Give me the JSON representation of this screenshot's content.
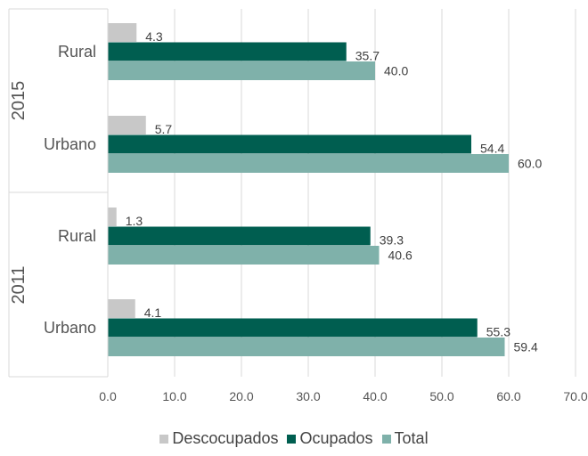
{
  "chart_data": {
    "type": "bar",
    "orientation": "horizontal",
    "groups": [
      {
        "label": "2015",
        "categories": [
          "Rural",
          "Urbano"
        ]
      },
      {
        "label": "2011",
        "categories": [
          "Rural",
          "Urbano"
        ]
      }
    ],
    "series": [
      {
        "name": "Descocupados",
        "color": "#c8c8c8",
        "values": [
          4.3,
          5.7,
          1.3,
          4.1
        ]
      },
      {
        "name": "Ocupados",
        "color": "#005e50",
        "values": [
          35.7,
          54.4,
          39.3,
          55.3
        ]
      },
      {
        "name": "Total",
        "color": "#7fb1aa",
        "values": [
          40.0,
          60.0,
          40.6,
          59.4
        ]
      }
    ],
    "value_labels": {
      "Descocupados": [
        "4.3",
        "5.7",
        "1.3",
        "4.1"
      ],
      "Ocupados": [
        "35.7",
        "54.4",
        "39.3",
        "55.3"
      ],
      "Total": [
        "40.0",
        "60.0",
        "40.6",
        "59.4"
      ]
    },
    "xlim": [
      0,
      70
    ],
    "xticks": [
      "0.0",
      "10.0",
      "20.0",
      "30.0",
      "40.0",
      "50.0",
      "60.0",
      "70.0"
    ],
    "grid": "vertical",
    "legend_position": "bottom"
  }
}
